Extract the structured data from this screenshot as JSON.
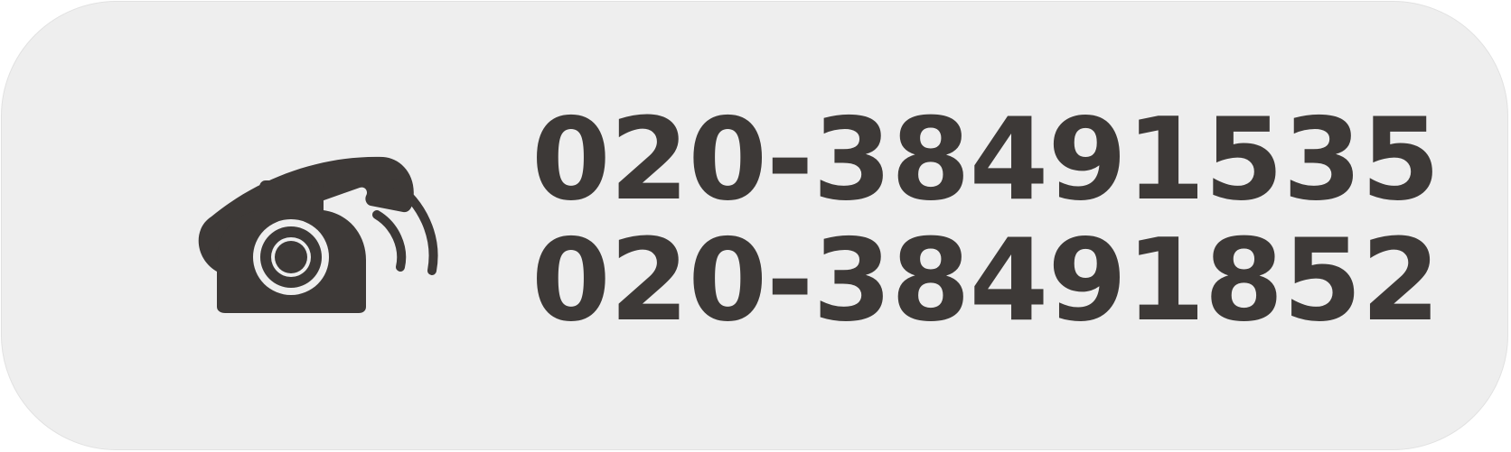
{
  "contact": {
    "icon": "telephone-ringing-icon",
    "numbers": [
      "020-38491535",
      "020-38491852"
    ]
  },
  "colors": {
    "background": "#eeeeee",
    "foreground": "#3d3937"
  }
}
